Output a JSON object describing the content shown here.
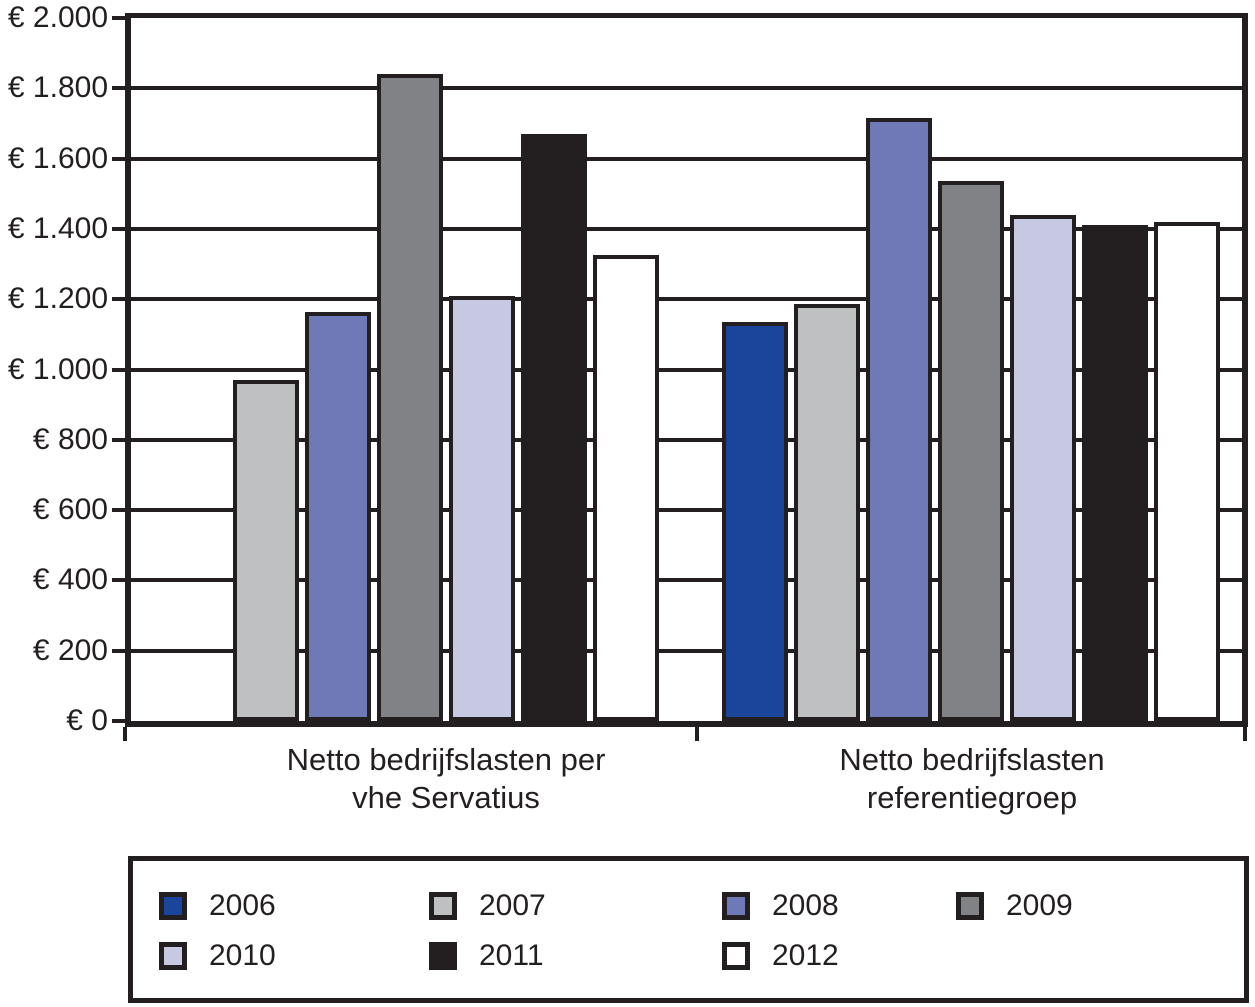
{
  "chart_data": {
    "type": "bar",
    "title": "",
    "xlabel": "",
    "ylabel": "",
    "categories": [
      "Netto bedrijfslasten per\nvhe Servatius",
      "Netto bedrijfslasten\nreferentiegroep"
    ],
    "series": [
      {
        "name": "2006",
        "color": "#1B449B",
        "values": [
          null,
          1135
        ]
      },
      {
        "name": "2007",
        "color": "#BFC0C2",
        "values": [
          970,
          1185
        ]
      },
      {
        "name": "2008",
        "color": "#7079B8",
        "values": [
          1165,
          1715
        ]
      },
      {
        "name": "2009",
        "color": "#808285",
        "values": [
          1840,
          1535
        ]
      },
      {
        "name": "2010",
        "color": "#C7C9E3",
        "values": [
          1210,
          1440
        ]
      },
      {
        "name": "2011",
        "color": "#231F20",
        "values": [
          1670,
          1410
        ]
      },
      {
        "name": "2012",
        "color": "#FFFFFF",
        "values": [
          1325,
          1420
        ]
      }
    ],
    "ylim": [
      0,
      2000
    ],
    "ytick_step": 200,
    "yticks": [
      {
        "v": 0,
        "label": "€ 0"
      },
      {
        "v": 200,
        "label": "€ 200"
      },
      {
        "v": 400,
        "label": "€ 400"
      },
      {
        "v": 600,
        "label": "€ 600"
      },
      {
        "v": 800,
        "label": "€ 800"
      },
      {
        "v": 1000,
        "label": "€ 1.000"
      },
      {
        "v": 1200,
        "label": "€ 1.200"
      },
      {
        "v": 1400,
        "label": "€ 1.400"
      },
      {
        "v": 1600,
        "label": "€ 1.600"
      },
      {
        "v": 1800,
        "label": "€ 1.800"
      },
      {
        "v": 2000,
        "label": "€ 2.000"
      }
    ],
    "grid": true,
    "legend_position": "bottom",
    "colors": {
      "axis": "#231F20",
      "background": "#FFFFFF"
    }
  }
}
